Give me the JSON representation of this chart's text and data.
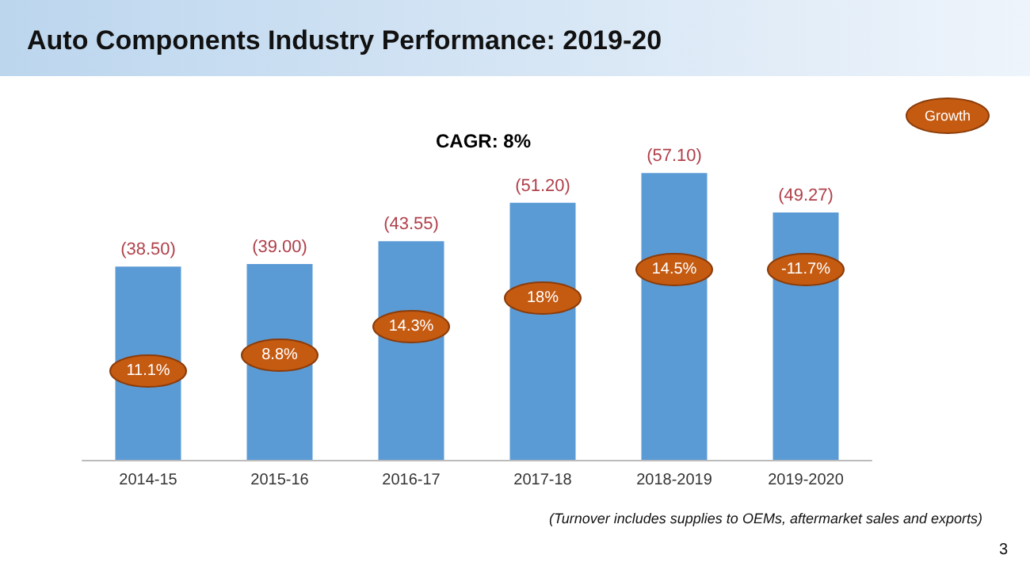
{
  "chart_data": {
    "type": "bar",
    "title": "Auto Components Industry Performance: 2019-20",
    "subtitle": "CAGR: 8%",
    "categories": [
      "2014-15",
      "2015-16",
      "2016-17",
      "2017-18",
      "2018-2019",
      "2019-2020"
    ],
    "values": [
      38.5,
      39.0,
      43.55,
      51.2,
      57.1,
      49.27
    ],
    "color": "#5b9bd5",
    "value_labels": [
      "(38.50)",
      "(39.00)",
      "(43.55)",
      "(51.20)",
      "(57.10)",
      "(49.27)"
    ],
    "annotations": [
      "11.1%",
      "8.8%",
      "14.3%",
      "18%",
      "14.5%",
      "-11.7%",
      "Growth",
      "(Turnover includes supplies to OEMs, aftermarket sales and exports)",
      "3"
    ],
    "grid": false,
    "tick_labels": "x"
  }
}
